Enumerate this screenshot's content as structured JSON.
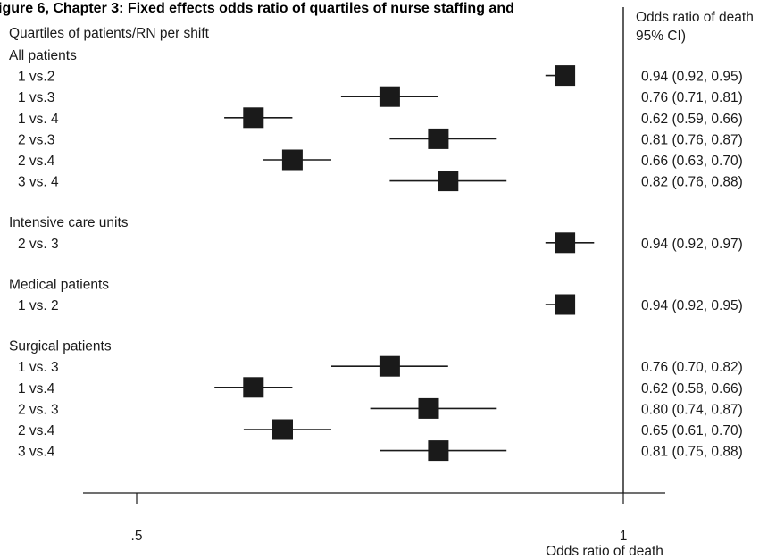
{
  "chart_data": {
    "type": "forest",
    "title": "igure 6, Chapter 3: Fixed effects odds ratio of quartiles of nurse staffing and",
    "row_header": "Quartiles of patients/RN per shift",
    "ci_header_line1": "Odds ratio of death",
    "ci_header_line2": "95% CI)",
    "xlabel": "Odds ratio of death",
    "x_ticks": [
      {
        "value": 0.5,
        "label": ".5"
      },
      {
        "value": 1,
        "label": "1"
      }
    ],
    "reference_line": 1,
    "groups": [
      {
        "label": "All patients",
        "rows": [
          {
            "label": "1 vs.2",
            "or": 0.94,
            "lo": 0.92,
            "hi": 0.95,
            "text": "0.94 (0.92, 0.95)"
          },
          {
            "label": "1 vs.3",
            "or": 0.76,
            "lo": 0.71,
            "hi": 0.81,
            "text": "0.76 (0.71, 0.81)"
          },
          {
            "label": "1 vs. 4",
            "or": 0.62,
            "lo": 0.59,
            "hi": 0.66,
            "text": "0.62 (0.59, 0.66)"
          },
          {
            "label": "2 vs.3",
            "or": 0.81,
            "lo": 0.76,
            "hi": 0.87,
            "text": "0.81 (0.76, 0.87)"
          },
          {
            "label": "2 vs.4",
            "or": 0.66,
            "lo": 0.63,
            "hi": 0.7,
            "text": "0.66 (0.63, 0.70)"
          },
          {
            "label": "3 vs. 4",
            "or": 0.82,
            "lo": 0.76,
            "hi": 0.88,
            "text": "0.82 (0.76, 0.88)"
          }
        ]
      },
      {
        "label": "Intensive care units",
        "rows": [
          {
            "label": "2 vs. 3",
            "or": 0.94,
            "lo": 0.92,
            "hi": 0.97,
            "text": "0.94 (0.92, 0.97)"
          }
        ]
      },
      {
        "label": "Medical patients",
        "rows": [
          {
            "label": "1 vs. 2",
            "or": 0.94,
            "lo": 0.92,
            "hi": 0.95,
            "text": "0.94 (0.92, 0.95)"
          }
        ]
      },
      {
        "label": "Surgical patients",
        "rows": [
          {
            "label": "1 vs. 3",
            "or": 0.76,
            "lo": 0.7,
            "hi": 0.82,
            "text": "0.76 (0.70, 0.82)"
          },
          {
            "label": "1 vs.4",
            "or": 0.62,
            "lo": 0.58,
            "hi": 0.66,
            "text": "0.62 (0.58, 0.66)"
          },
          {
            "label": "2 vs. 3",
            "or": 0.8,
            "lo": 0.74,
            "hi": 0.87,
            "text": "0.80 (0.74, 0.87)"
          },
          {
            "label": "2 vs.4",
            "or": 0.65,
            "lo": 0.61,
            "hi": 0.7,
            "text": "0.65 (0.61, 0.70)"
          },
          {
            "label": "3 vs.4",
            "or": 0.81,
            "lo": 0.75,
            "hi": 0.88,
            "text": "0.81 (0.75, 0.88)"
          }
        ]
      }
    ],
    "marker_color": "#1a1a1a",
    "grid": false
  }
}
